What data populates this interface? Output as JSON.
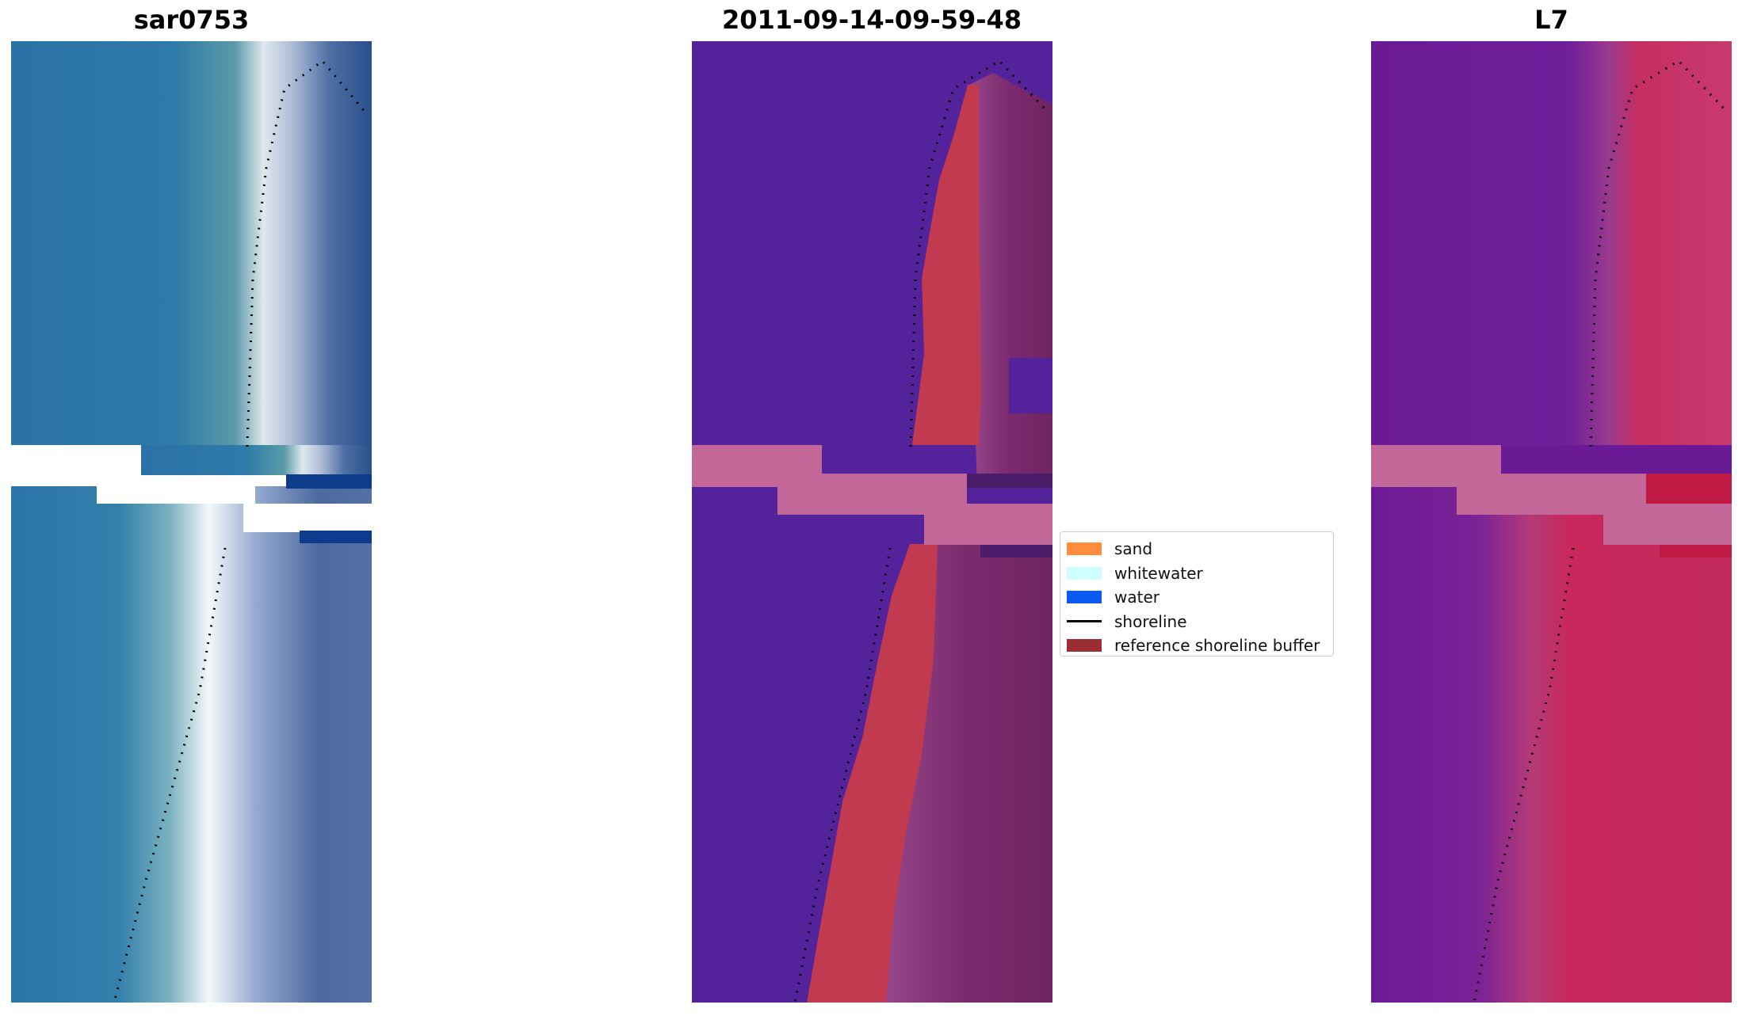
{
  "panels": [
    {
      "title": "sar0753",
      "kind": "rgb"
    },
    {
      "title": "2011-09-14-09-59-48",
      "kind": "classified"
    },
    {
      "title": "L7",
      "kind": "index"
    }
  ],
  "legend": {
    "items": [
      {
        "label": "sand",
        "type": "patch",
        "color": "#ff8c3c"
      },
      {
        "label": "whitewater",
        "type": "patch",
        "color": "#ccfffd"
      },
      {
        "label": "water",
        "type": "patch",
        "color": "#0a5af2"
      },
      {
        "label": "shoreline",
        "type": "line",
        "color": "#000000"
      },
      {
        "label": "reference shoreline buffer",
        "type": "patch",
        "color": "#9b2d35"
      }
    ]
  },
  "colors": {
    "rgb_water": "#2a74a8",
    "rgb_surf": "#e8eef4",
    "class_water": "#54229a",
    "class_buffer": "#c13a4f",
    "class_land": "#7c2a6e",
    "index_water": "#6b1a96",
    "index_land": "#c8245a",
    "nodata_pink": "#c26797"
  }
}
